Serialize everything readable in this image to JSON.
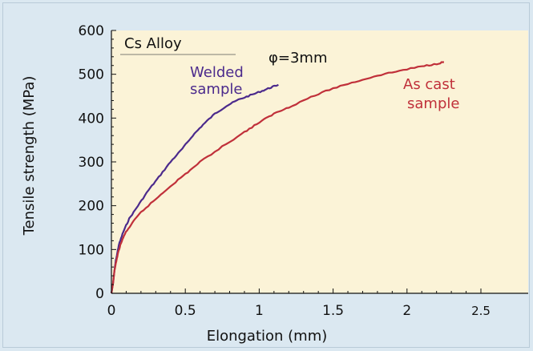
{
  "chart_data": {
    "type": "line",
    "title": "",
    "xlabel": "Elongation (mm)",
    "ylabel": "Tensile strength (MPa)",
    "xlim": [
      0,
      2.5
    ],
    "ylim": [
      0,
      600
    ],
    "x_ticks": [
      "0",
      "0.5",
      "1",
      "1.5",
      "2",
      "2.5"
    ],
    "y_ticks": [
      "0",
      "100",
      "200",
      "300",
      "400",
      "500",
      "600"
    ],
    "grid": false,
    "legend": "none",
    "colors": {
      "plot_background": "#fbf3d7",
      "figure_background": "#dbe8f1",
      "welded": "#4b2a8c",
      "as_cast": "#c0303a"
    },
    "annotations": {
      "alloy": "Cs Alloy",
      "diameter": "φ=3mm",
      "welded_line1": "Welded",
      "welded_line2": "sample",
      "cast_line1": "As cast",
      "cast_line2": "sample"
    },
    "series": [
      {
        "name": "Welded sample",
        "color": "#4b2a8c",
        "points": [
          [
            0,
            0
          ],
          [
            0.01,
            20
          ],
          [
            0.02,
            50
          ],
          [
            0.03,
            75
          ],
          [
            0.05,
            110
          ],
          [
            0.08,
            140
          ],
          [
            0.12,
            170
          ],
          [
            0.18,
            200
          ],
          [
            0.25,
            235
          ],
          [
            0.32,
            265
          ],
          [
            0.4,
            300
          ],
          [
            0.48,
            330
          ],
          [
            0.55,
            360
          ],
          [
            0.62,
            385
          ],
          [
            0.7,
            410
          ],
          [
            0.78,
            428
          ],
          [
            0.86,
            442
          ],
          [
            0.94,
            452
          ],
          [
            1.02,
            462
          ],
          [
            1.08,
            470
          ],
          [
            1.13,
            476
          ]
        ]
      },
      {
        "name": "As cast sample",
        "color": "#c0303a",
        "points": [
          [
            0,
            0
          ],
          [
            0.01,
            20
          ],
          [
            0.02,
            50
          ],
          [
            0.04,
            85
          ],
          [
            0.06,
            110
          ],
          [
            0.09,
            135
          ],
          [
            0.14,
            160
          ],
          [
            0.2,
            185
          ],
          [
            0.3,
            215
          ],
          [
            0.4,
            245
          ],
          [
            0.5,
            272
          ],
          [
            0.6,
            300
          ],
          [
            0.75,
            335
          ],
          [
            0.9,
            368
          ],
          [
            1.0,
            390
          ],
          [
            1.1,
            410
          ],
          [
            1.2,
            425
          ],
          [
            1.35,
            448
          ],
          [
            1.5,
            468
          ],
          [
            1.65,
            483
          ],
          [
            1.8,
            497
          ],
          [
            1.95,
            508
          ],
          [
            2.1,
            518
          ],
          [
            2.2,
            524
          ],
          [
            2.25,
            528
          ]
        ]
      }
    ]
  }
}
